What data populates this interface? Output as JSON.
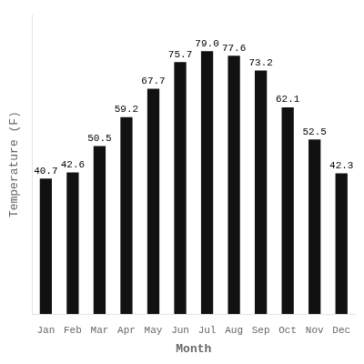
{
  "chart_data": {
    "type": "bar",
    "categories": [
      "Jan",
      "Feb",
      "Mar",
      "Apr",
      "May",
      "Jun",
      "Jul",
      "Aug",
      "Sep",
      "Oct",
      "Nov",
      "Dec"
    ],
    "values": [
      40.7,
      42.6,
      50.5,
      59.2,
      67.7,
      75.7,
      79.0,
      77.6,
      73.2,
      62.1,
      52.5,
      42.3
    ],
    "value_labels": [
      "40.7",
      "42.6",
      "50.5",
      "59.2",
      "67.7",
      "75.7",
      "79.0",
      "77.6",
      "73.2",
      "62.1",
      "52.5",
      "42.3"
    ],
    "color": "#111111",
    "xlabel": "Month",
    "ylabel": "Temperature (F)",
    "ylim": [
      0,
      90
    ],
    "grid": false,
    "data_labels": true,
    "tick_labels": "x"
  }
}
